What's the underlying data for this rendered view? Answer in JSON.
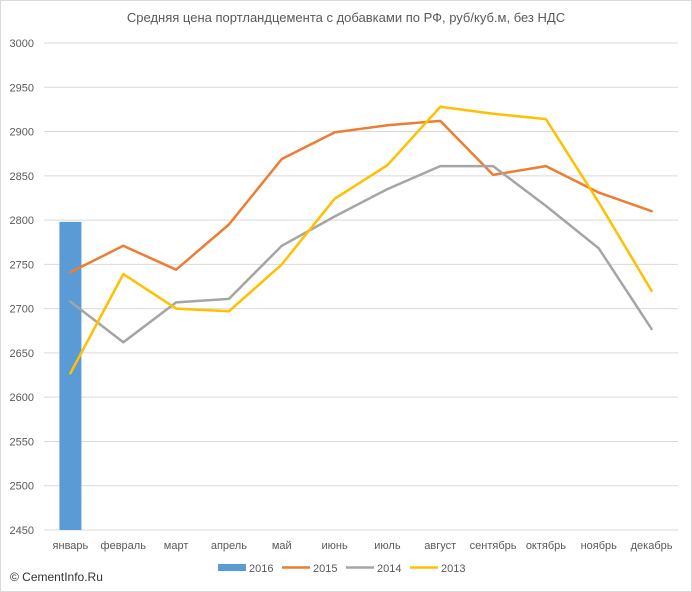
{
  "chart_data": {
    "type": "bar+line",
    "title": "Средняя  цена портландцемента  с добавками по РФ, руб/куб.м, без НДС",
    "categories": [
      "январь",
      "февраль",
      "март",
      "апрель",
      "май",
      "июнь",
      "июль",
      "август",
      "сентябрь",
      "октябрь",
      "ноябрь",
      "декабрь"
    ],
    "ylim": [
      2450,
      3000
    ],
    "yticks": [
      2450,
      2500,
      2550,
      2600,
      2650,
      2700,
      2750,
      2800,
      2850,
      2900,
      2950,
      3000
    ],
    "grid": true,
    "legend_position": "bottom",
    "series": [
      {
        "name": "2016",
        "kind": "bar",
        "color": "#5b9bd5",
        "values": [
          2798,
          null,
          null,
          null,
          null,
          null,
          null,
          null,
          null,
          null,
          null,
          null
        ]
      },
      {
        "name": "2015",
        "kind": "line",
        "color": "#ed7d31",
        "values": [
          2741,
          2771,
          2744,
          2795,
          2869,
          2899,
          2907,
          2912,
          2851,
          2861,
          2831,
          2810
        ]
      },
      {
        "name": "2014",
        "kind": "line",
        "color": "#a5a5a5",
        "values": [
          2708,
          2662,
          2707,
          2711,
          2771,
          2804,
          2835,
          2861,
          2861,
          2816,
          2768,
          2677
        ]
      },
      {
        "name": "2013",
        "kind": "line",
        "color": "#ffc000",
        "values": [
          2627,
          2739,
          2700,
          2697,
          2750,
          2824,
          2862,
          2928,
          2920,
          2914,
          2820,
          2720
        ]
      }
    ]
  },
  "watermark": "© CementInfo.Ru"
}
